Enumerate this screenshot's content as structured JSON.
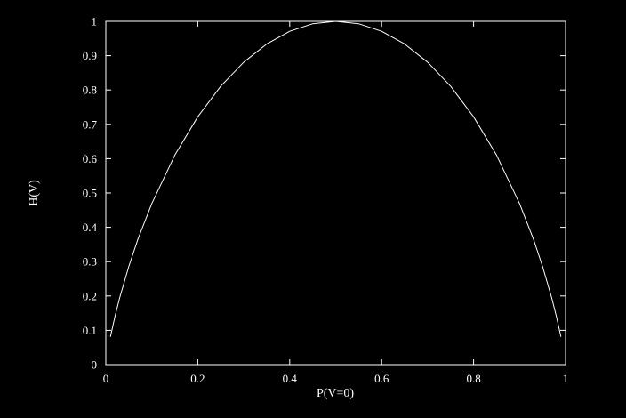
{
  "chart_data": {
    "type": "line",
    "title": "",
    "xlabel": "P(V=0)",
    "ylabel": "H(V)",
    "xlim": [
      0,
      1
    ],
    "ylim": [
      0,
      1
    ],
    "x_ticks": [
      "0",
      "0.2",
      "0.4",
      "0.6",
      "0.8",
      "1"
    ],
    "y_ticks": [
      "0",
      "0.1",
      "0.2",
      "0.3",
      "0.4",
      "0.5",
      "0.6",
      "0.7",
      "0.8",
      "0.9",
      "1"
    ],
    "grid": false,
    "legend": "none",
    "colors": {
      "background": "#000000",
      "axes": "#ffffff",
      "line": "#ffffff"
    },
    "series": [
      {
        "x": [
          0.01,
          0.02,
          0.03,
          0.05,
          0.07,
          0.1,
          0.15,
          0.2,
          0.25,
          0.3,
          0.35,
          0.4,
          0.45,
          0.5,
          0.55,
          0.6,
          0.65,
          0.7,
          0.75,
          0.8,
          0.85,
          0.9,
          0.93,
          0.95,
          0.97,
          0.98,
          0.99
        ],
        "y": [
          0.081,
          0.141,
          0.194,
          0.286,
          0.366,
          0.469,
          0.61,
          0.722,
          0.811,
          0.881,
          0.934,
          0.971,
          0.993,
          1.0,
          0.993,
          0.971,
          0.934,
          0.881,
          0.811,
          0.722,
          0.61,
          0.469,
          0.366,
          0.286,
          0.194,
          0.141,
          0.081
        ]
      }
    ]
  }
}
